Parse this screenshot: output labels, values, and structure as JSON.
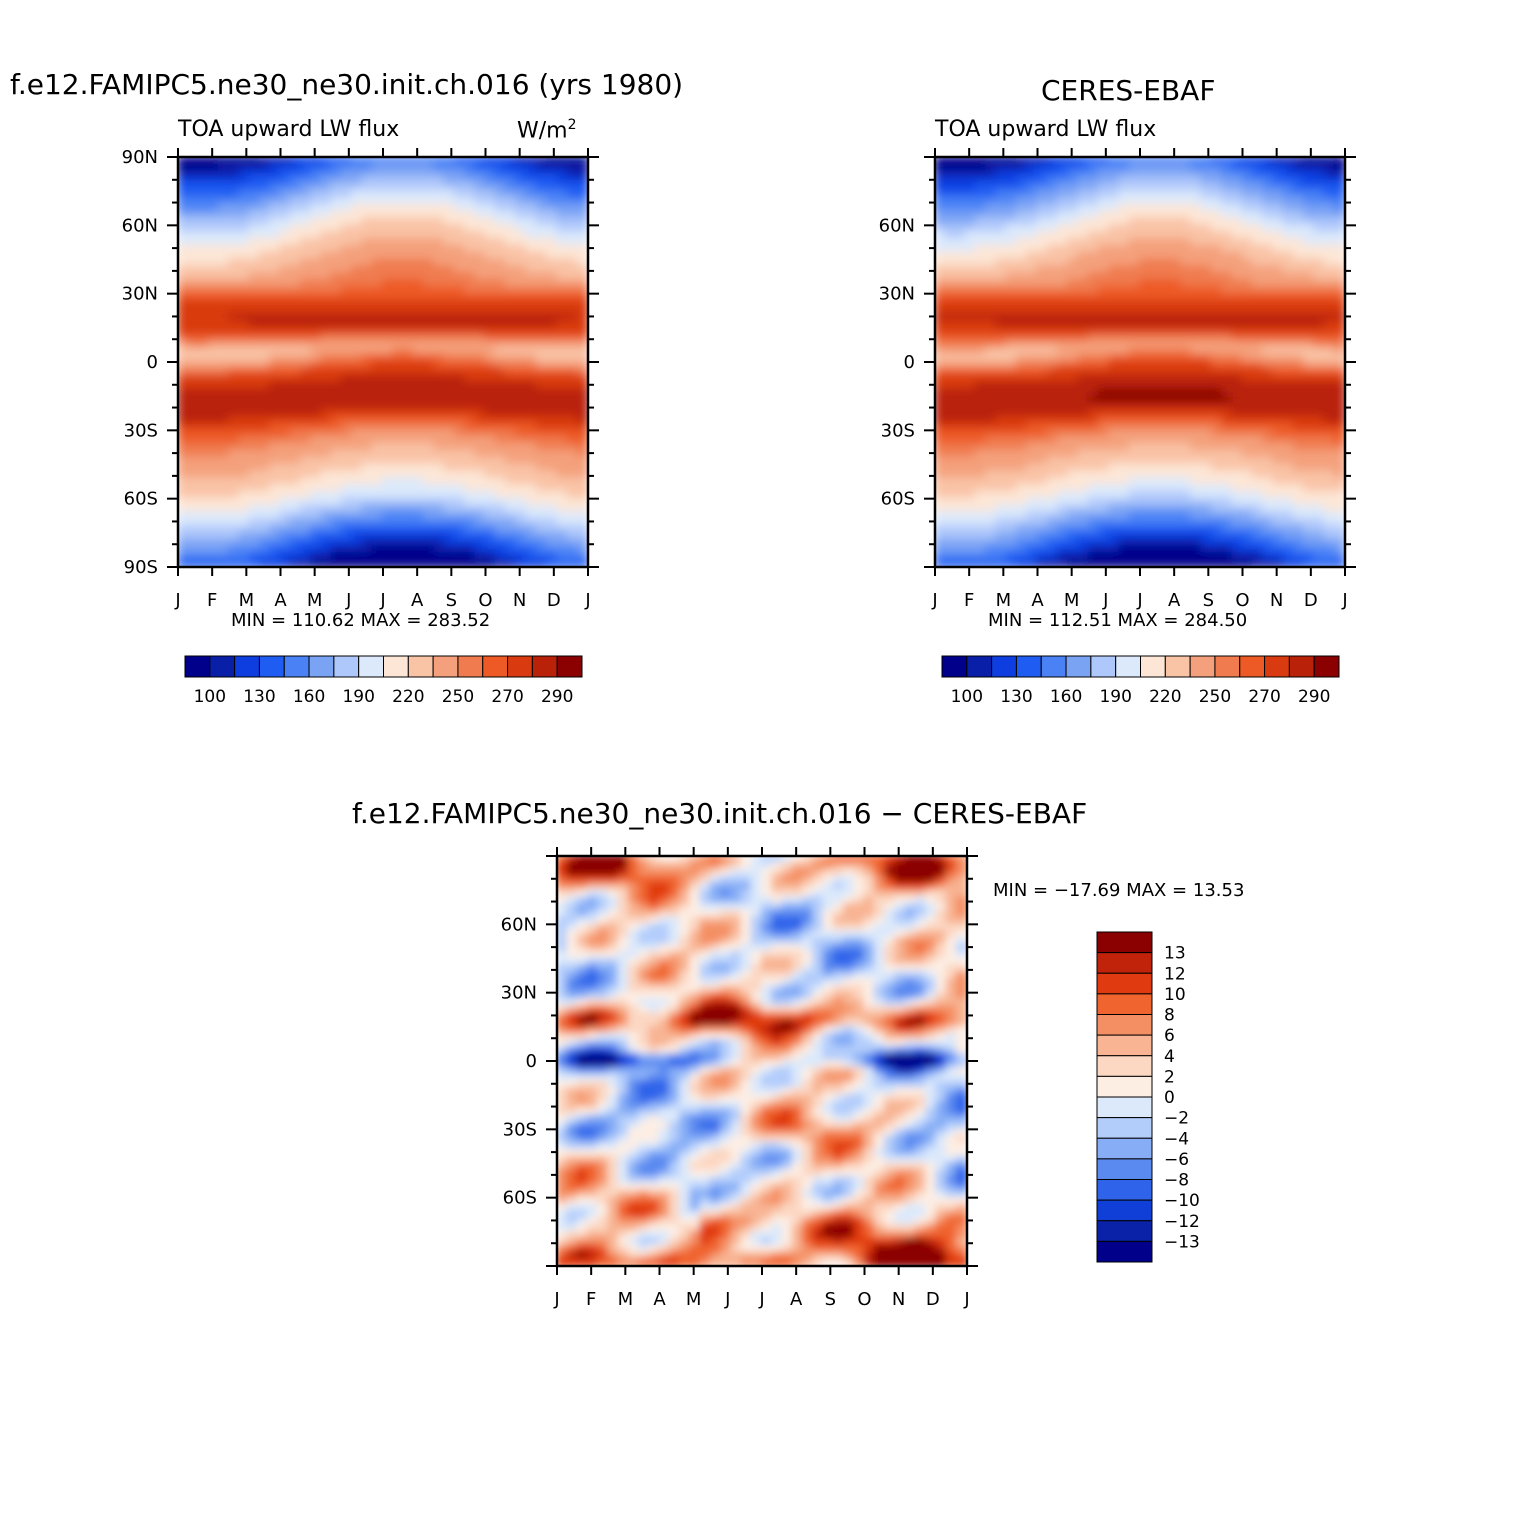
{
  "panel_left": {
    "title": "f.e12.FAMIPC5.ne30_ne30.init.ch.016 (yrs 1980)",
    "subtitle_left": "TOA upward LW flux",
    "units": "W/m",
    "units_sup": "2",
    "minmax": "MIN = 110.62 MAX = 283.52"
  },
  "panel_right": {
    "title": "CERES-EBAF",
    "subtitle_left": "TOA upward LW flux",
    "minmax": "MIN = 112.51 MAX = 284.50"
  },
  "panel_diff": {
    "title": "f.e12.FAMIPC5.ne30_ne30.init.ch.016 − CERES-EBAF",
    "minmax": "MIN = −17.69 MAX =   13.53"
  },
  "chart_data": [
    {
      "type": "heatmap",
      "title": "f.e12.FAMIPC5.ne30_ne30.init.ch.016 (yrs 1980)",
      "subtitle": "TOA upward LW flux",
      "units": "W/m2",
      "x_ticks": [
        "J",
        "F",
        "M",
        "A",
        "M",
        "J",
        "J",
        "A",
        "S",
        "O",
        "N",
        "D",
        "J"
      ],
      "y_ticks": [
        "90N",
        "60N",
        "30N",
        "0",
        "30S",
        "60S",
        "90S"
      ],
      "ylim": [
        -90,
        90
      ],
      "min": 110.62,
      "max": 283.52,
      "colorbar_levels": [
        "100",
        "130",
        "160",
        "190",
        "220",
        "250",
        "270",
        "290"
      ],
      "colors": [
        "#00008b",
        "#0a1fa8",
        "#0e3ee0",
        "#1f5cf2",
        "#4a82f6",
        "#7aa3f4",
        "#afc8fb",
        "#dce9fb",
        "#fde6d6",
        "#f9c3a6",
        "#f4a07c",
        "#f07b4f",
        "#ed5a25",
        "#d93a0f",
        "#b92208",
        "#8b0000"
      ]
    },
    {
      "type": "heatmap",
      "title": "CERES-EBAF",
      "subtitle": "TOA upward LW flux",
      "x_ticks": [
        "J",
        "F",
        "M",
        "A",
        "M",
        "J",
        "J",
        "A",
        "S",
        "O",
        "N",
        "D",
        "J"
      ],
      "y_ticks": [
        "60N",
        "30N",
        "0",
        "30S",
        "60S"
      ],
      "ylim": [
        -90,
        90
      ],
      "min": 112.51,
      "max": 284.5,
      "colorbar_levels": [
        "100",
        "130",
        "160",
        "190",
        "220",
        "250",
        "270",
        "290"
      ],
      "colors": [
        "#00008b",
        "#0a1fa8",
        "#0e3ee0",
        "#1f5cf2",
        "#4a82f6",
        "#7aa3f4",
        "#afc8fb",
        "#dce9fb",
        "#fde6d6",
        "#f9c3a6",
        "#f4a07c",
        "#f07b4f",
        "#ed5a25",
        "#d93a0f",
        "#b92208",
        "#8b0000"
      ]
    },
    {
      "type": "heatmap",
      "title": "f.e12.FAMIPC5.ne30_ne30.init.ch.016 − CERES-EBAF",
      "x_ticks": [
        "J",
        "F",
        "M",
        "A",
        "M",
        "J",
        "J",
        "A",
        "S",
        "O",
        "N",
        "D",
        "J"
      ],
      "y_ticks": [
        "60N",
        "30N",
        "0",
        "30S",
        "60S"
      ],
      "ylim": [
        -90,
        90
      ],
      "min": -17.69,
      "max": 13.53,
      "colorbar_levels": [
        "13",
        "12",
        "10",
        "8",
        "6",
        "4",
        "2",
        "0",
        "−2",
        "−4",
        "−6",
        "−8",
        "−10",
        "−12",
        "−13"
      ],
      "colors": [
        "#8b0000",
        "#c0230a",
        "#e03a10",
        "#f0642f",
        "#f48f64",
        "#f8b493",
        "#fcd7c2",
        "#fdeee4",
        "#dce9fb",
        "#b3cdfb",
        "#86adf6",
        "#5a89f0",
        "#2f63ea",
        "#0f3fd6",
        "#0a22a8",
        "#00008b"
      ]
    }
  ]
}
